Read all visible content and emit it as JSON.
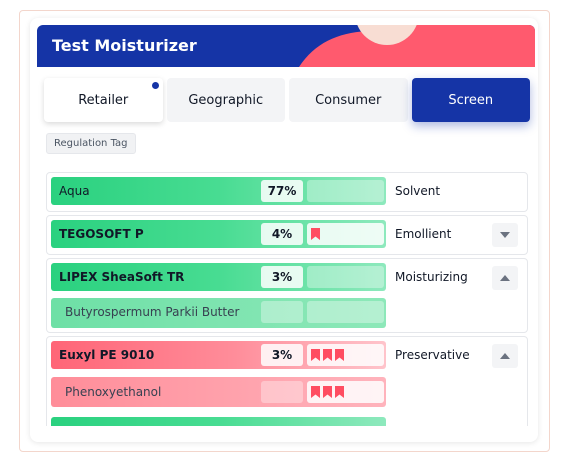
{
  "header": {
    "title": "Test Moisturizer"
  },
  "tabs": [
    {
      "label": "Retailer",
      "notification": true
    },
    {
      "label": "Geographic"
    },
    {
      "label": "Consumer"
    },
    {
      "label": "Screen",
      "active": true
    }
  ],
  "regulation_tag": {
    "label": "Regulation Tag"
  },
  "ingredients": [
    {
      "name": "Aqua",
      "percent": "77%",
      "hazard_level": 0,
      "function": "Solvent",
      "color": "green",
      "expand": "none"
    },
    {
      "name": "TEGOSOFT P",
      "percent": "4%",
      "hazard_level": 1,
      "function": "Emollient",
      "color": "green",
      "expand": "collapsed"
    },
    {
      "name": "LIPEX SheaSoft TR",
      "percent": "3%",
      "hazard_level": 0,
      "function": "Moisturizing",
      "color": "green",
      "expand": "expanded",
      "components": [
        {
          "name": "Butyrospermum Parkii Butter",
          "hazard_level": 0
        }
      ]
    },
    {
      "name": "Euxyl PE 9010",
      "percent": "3%",
      "hazard_level": 3,
      "function": "Preservative",
      "color": "red",
      "expand": "expanded",
      "components": [
        {
          "name": "Phenoxyethanol",
          "hazard_level": 3
        }
      ]
    }
  ],
  "colors": {
    "brand": "#1534a6",
    "accent_red": "#ff5a6e",
    "safe_green": "#2ad17f",
    "flag_red": "#ff4d61"
  },
  "icons": {
    "chevron_down": "chevron-down-icon",
    "chevron_up": "chevron-up-icon",
    "hazard": "bookmark-flag-icon"
  }
}
